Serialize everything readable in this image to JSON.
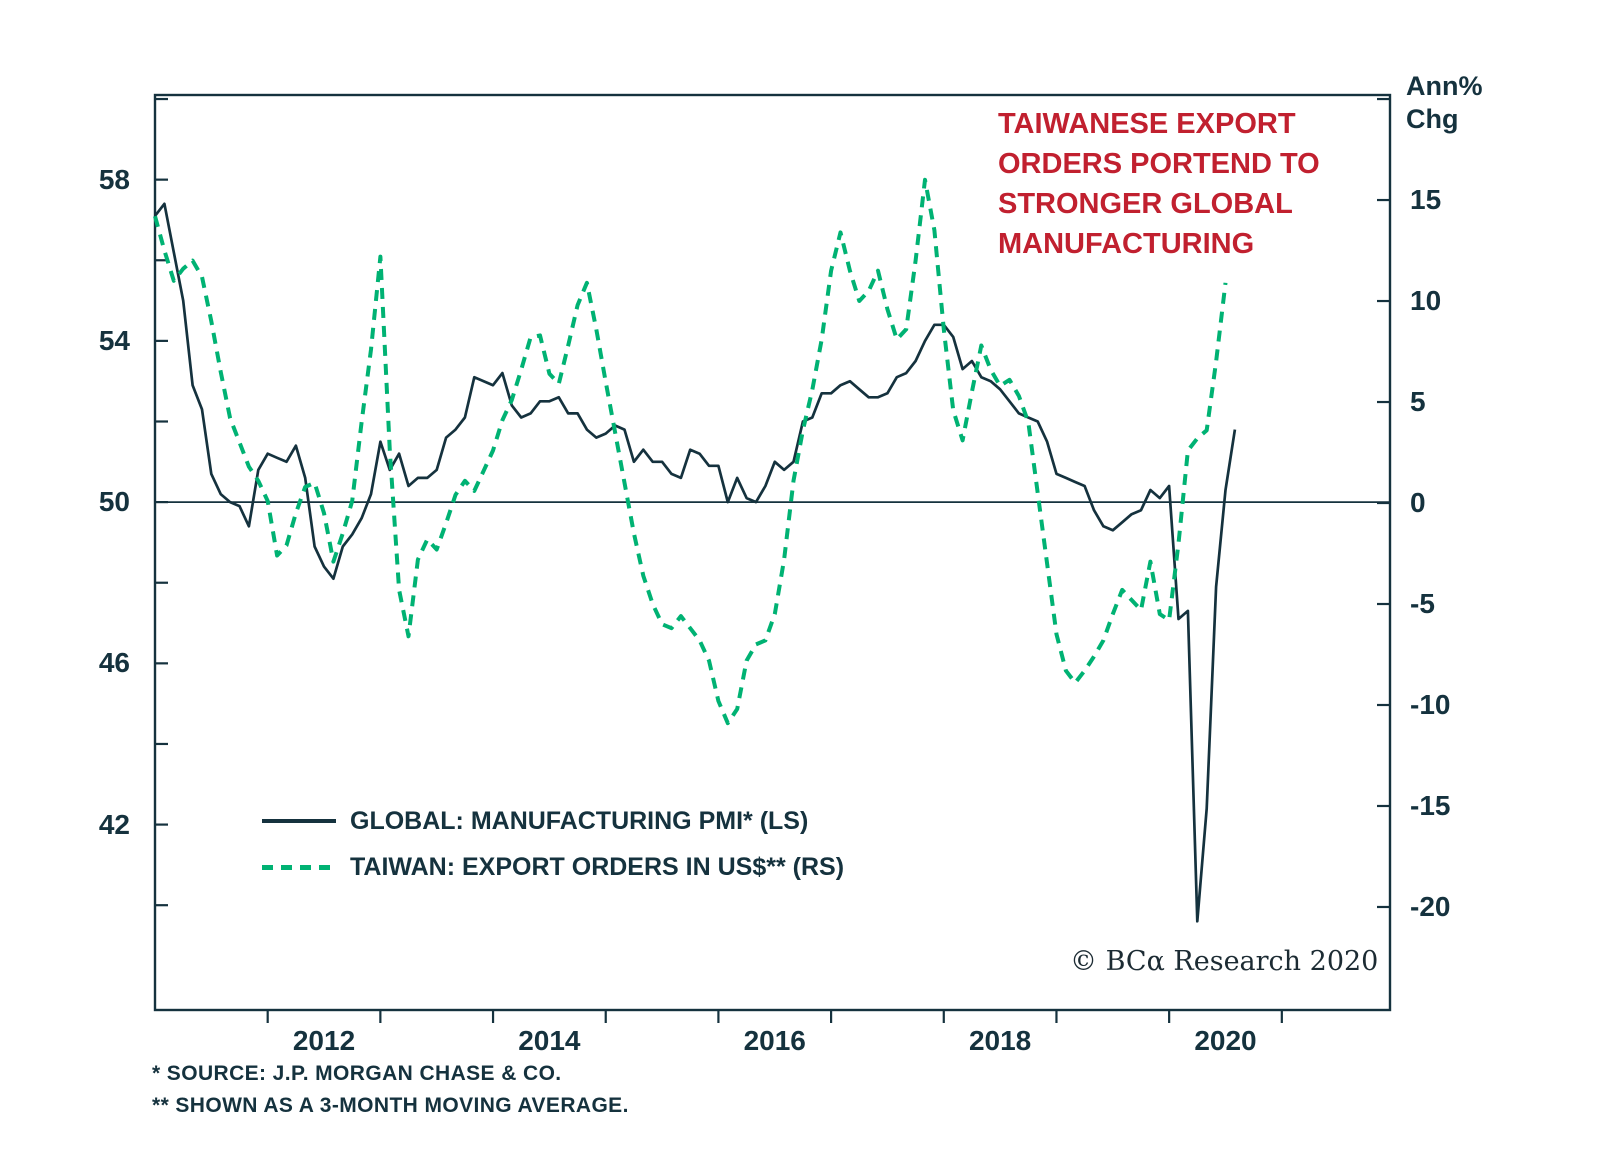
{
  "title": {
    "text": "TAIWANESE EXPORT ORDERS PORTEND TO STRONGER GLOBAL MANUFACTURING",
    "color": "#c1202f"
  },
  "branding": {
    "copyright": "© BCα Research 2020"
  },
  "footnotes": [
    "*  SOURCE: J.P. MORGAN CHASE & CO.",
    "** SHOWN AS A 3-MONTH MOVING AVERAGE."
  ],
  "legend": {
    "items": [
      {
        "label": "GLOBAL: MANUFACTURING PMI* (LS)",
        "style": "solid",
        "color": "#15323e"
      },
      {
        "label": "TAIWAN: EXPORT ORDERS IN US$** (RS)",
        "style": "dashed",
        "color": "#00b273"
      }
    ]
  },
  "colors": {
    "navy": "#15323e",
    "green": "#00b273",
    "red": "#c1202f"
  },
  "chart_data": {
    "type": "line",
    "frequency": "monthly",
    "grid": false,
    "x_axis": {
      "domain": [
        2011.0,
        2021.96
      ],
      "tick_years": [
        2012,
        2013,
        2014,
        2015,
        2016,
        2017,
        2018,
        2019,
        2020,
        2021
      ],
      "labels": [
        {
          "position": 2012.5,
          "text": "2012"
        },
        {
          "position": 2014.5,
          "text": "2014"
        },
        {
          "position": 2016.5,
          "text": "2016"
        },
        {
          "position": 2018.5,
          "text": "2018"
        },
        {
          "position": 2020.5,
          "text": "2020"
        }
      ]
    },
    "left_axis": {
      "domain": [
        37.4,
        60.1
      ],
      "tick_values": [
        40,
        42,
        44,
        46,
        48,
        50,
        52,
        54,
        56,
        58,
        60
      ],
      "labels": [
        {
          "value": 58,
          "text": "58"
        },
        {
          "value": 54,
          "text": "54"
        },
        {
          "value": 50,
          "text": "50"
        },
        {
          "value": 46,
          "text": "46"
        },
        {
          "value": 42,
          "text": "42"
        }
      ]
    },
    "right_axis": {
      "header_line1": "Ann%",
      "header_line2": "Chg",
      "domain": [
        -25.1,
        20.2
      ],
      "tick_values": [
        -20,
        -15,
        -10,
        -5,
        0,
        5,
        10,
        15,
        20
      ],
      "labels": [
        {
          "value": 15,
          "text": "15"
        },
        {
          "value": 10,
          "text": "10"
        },
        {
          "value": 5,
          "text": "5"
        },
        {
          "value": 0,
          "text": "0"
        },
        {
          "value": -5,
          "text": "-5"
        },
        {
          "value": -10,
          "text": "-10"
        },
        {
          "value": -15,
          "text": "-15"
        },
        {
          "value": -20,
          "text": "-20"
        }
      ]
    },
    "baseline": {
      "axis": "left",
      "value": 50
    },
    "series": [
      {
        "id": "global-pmi",
        "name": "GLOBAL: MANUFACTURING PMI (LS)",
        "axis": "left",
        "style": "solid",
        "color": "#15323e",
        "start_year": 2011,
        "start_month": 1,
        "values": [
          57.1,
          57.4,
          56.2,
          55.0,
          52.9,
          52.3,
          50.7,
          50.2,
          50.0,
          49.9,
          49.4,
          50.8,
          51.2,
          51.1,
          51.0,
          51.4,
          50.6,
          48.9,
          48.4,
          48.1,
          48.9,
          49.2,
          49.6,
          50.2,
          51.5,
          50.8,
          51.2,
          50.4,
          50.6,
          50.6,
          50.8,
          51.6,
          51.8,
          52.1,
          53.1,
          53.0,
          52.9,
          53.2,
          52.4,
          52.1,
          52.2,
          52.5,
          52.5,
          52.6,
          52.2,
          52.2,
          51.8,
          51.6,
          51.7,
          51.9,
          51.8,
          51.0,
          51.3,
          51.0,
          51.0,
          50.7,
          50.6,
          51.3,
          51.2,
          50.9,
          50.9,
          50.0,
          50.6,
          50.1,
          50.0,
          50.4,
          51.0,
          50.8,
          51.0,
          52.0,
          52.1,
          52.7,
          52.7,
          52.9,
          53.0,
          52.8,
          52.6,
          52.6,
          52.7,
          53.1,
          53.2,
          53.5,
          54.0,
          54.4,
          54.4,
          54.1,
          53.3,
          53.5,
          53.1,
          53.0,
          52.8,
          52.5,
          52.2,
          52.1,
          52.0,
          51.5,
          50.7,
          50.6,
          50.5,
          50.4,
          49.8,
          49.4,
          49.3,
          49.5,
          49.7,
          49.8,
          50.3,
          50.1,
          50.4,
          47.1,
          47.3,
          39.6,
          42.4,
          47.9,
          50.3,
          51.8
        ]
      },
      {
        "id": "taiwan-export-orders",
        "name": "TAIWAN: EXPORT ORDERS IN US$ (RS)",
        "axis": "right",
        "style": "dashed",
        "color": "#00b273",
        "start_year": 2011,
        "start_month": 1,
        "values": [
          14.2,
          12.5,
          11.0,
          11.6,
          12.0,
          11.2,
          9.0,
          6.5,
          4.2,
          3.0,
          1.8,
          1.1,
          0.1,
          -2.6,
          -2.1,
          -0.5,
          0.8,
          1.0,
          -0.5,
          -2.9,
          -1.5,
          0.1,
          4.0,
          7.6,
          12.2,
          2.6,
          -4.3,
          -6.6,
          -2.8,
          -1.8,
          -2.3,
          -1.0,
          0.4,
          1.1,
          0.6,
          1.6,
          2.6,
          4.1,
          5.1,
          6.6,
          8.2,
          8.3,
          6.4,
          5.9,
          7.8,
          9.8,
          10.9,
          8.6,
          6.0,
          3.5,
          1.0,
          -1.5,
          -3.6,
          -5.0,
          -6.0,
          -6.2,
          -5.6,
          -6.2,
          -6.8,
          -7.8,
          -9.8,
          -10.9,
          -10.2,
          -7.8,
          -7.0,
          -6.8,
          -5.5,
          -2.8,
          1.1,
          3.6,
          5.6,
          8.1,
          11.5,
          13.4,
          11.5,
          10.0,
          10.5,
          11.5,
          9.6,
          8.1,
          8.6,
          12.0,
          16.0,
          13.5,
          8.6,
          4.6,
          3.1,
          5.5,
          7.8,
          6.6,
          5.8,
          6.1,
          5.3,
          4.0,
          0.5,
          -3.0,
          -6.5,
          -8.3,
          -8.9,
          -8.3,
          -7.6,
          -6.8,
          -5.5,
          -4.3,
          -4.8,
          -5.3,
          -2.9,
          -5.5,
          -5.8,
          -2.0,
          2.6,
          3.2,
          3.6,
          7.0,
          10.9
        ]
      }
    ]
  }
}
